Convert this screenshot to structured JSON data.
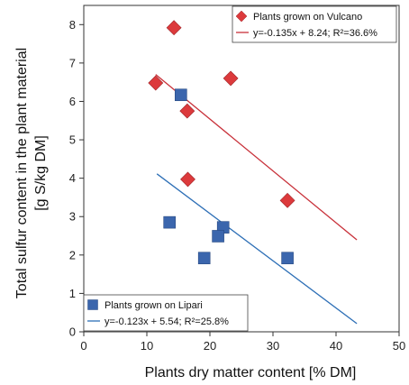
{
  "chart_data": {
    "type": "scatter",
    "xlabel": "Plants dry matter content [% DM]",
    "ylabel_lines": [
      "Total sulfur content in the plant material",
      "[g S/kg DM]"
    ],
    "xlim": [
      0,
      50
    ],
    "ylim": [
      0,
      8.5
    ],
    "x_ticks": [
      0,
      10,
      20,
      30,
      40,
      50
    ],
    "y_ticks": [
      0,
      1,
      2,
      3,
      4,
      5,
      6,
      7,
      8
    ],
    "grid": false,
    "series": [
      {
        "name": "Plants grown on Vulcano",
        "marker": "diamond",
        "color": "#dc3a3c",
        "line_color": "#c8313a",
        "points": [
          [
            14.3,
            7.92
          ],
          [
            23.3,
            6.6
          ],
          [
            11.4,
            6.48
          ],
          [
            16.4,
            5.75
          ],
          [
            16.5,
            3.97
          ],
          [
            32.3,
            3.42
          ]
        ],
        "fit_equation": "y=-0.135x + 8.24; R²=36.6%",
        "fit": {
          "slope": -0.135,
          "intercept": 8.24,
          "x_range": [
            11.4,
            43.3
          ]
        },
        "legend_position": "top-right"
      },
      {
        "name": "Plants grown on Lipari",
        "marker": "square",
        "color": "#3b66ad",
        "line_color": "#2d6fb6",
        "points": [
          [
            15.4,
            6.17
          ],
          [
            13.6,
            2.85
          ],
          [
            22.1,
            2.72
          ],
          [
            21.3,
            2.49
          ],
          [
            19.1,
            1.92
          ],
          [
            32.3,
            1.92
          ]
        ],
        "fit_equation": "y=-0.123x + 5.54; R²=25.8%",
        "fit": {
          "slope": -0.123,
          "intercept": 5.54,
          "x_range": [
            11.6,
            43.3
          ]
        },
        "legend_position": "bottom-left"
      }
    ]
  }
}
